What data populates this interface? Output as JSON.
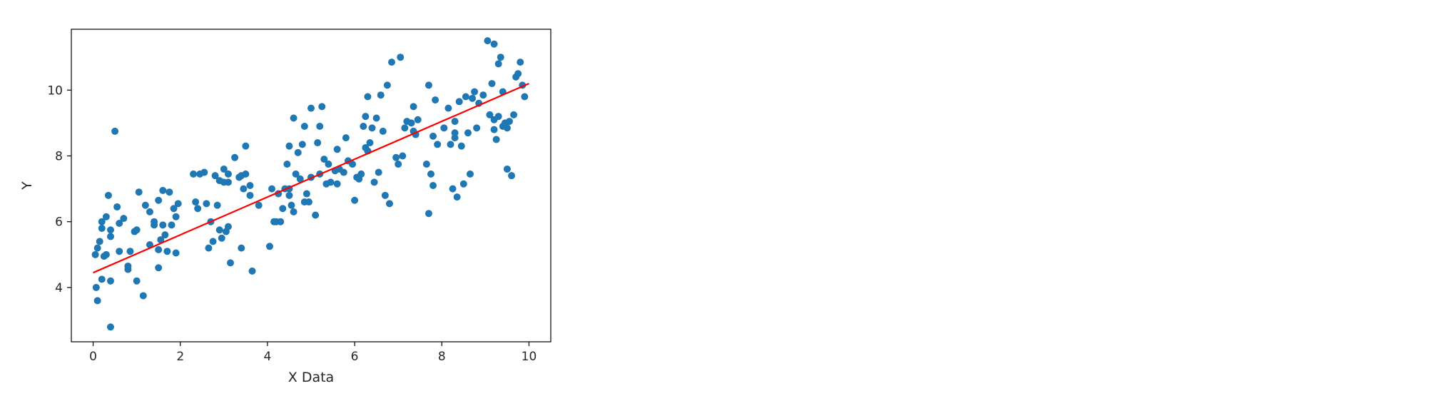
{
  "chart_data": {
    "type": "scatter",
    "title": "",
    "xlabel": "X Data",
    "ylabel": "Y",
    "xlim": [
      -0.5,
      10.5
    ],
    "ylim": [
      2.35,
      11.85
    ],
    "xticks": [
      0,
      2,
      4,
      6,
      8,
      10
    ],
    "yticks": [
      4,
      6,
      8,
      10
    ],
    "grid": false,
    "legend": "none",
    "colors": {
      "points": "#1f77b4",
      "fit_line": "#ff0000",
      "axes": "#000000"
    },
    "series": [
      {
        "kind": "scatter",
        "points": [
          [
            0.05,
            5.0
          ],
          [
            0.07,
            4.0
          ],
          [
            0.1,
            3.6
          ],
          [
            0.1,
            5.2
          ],
          [
            0.15,
            5.4
          ],
          [
            0.2,
            5.8
          ],
          [
            0.2,
            6.0
          ],
          [
            0.2,
            4.25
          ],
          [
            0.3,
            5.0
          ],
          [
            0.3,
            6.15
          ],
          [
            0.35,
            6.8
          ],
          [
            0.4,
            5.55
          ],
          [
            0.4,
            5.75
          ],
          [
            0.4,
            4.2
          ],
          [
            0.4,
            2.8
          ],
          [
            0.5,
            8.75
          ],
          [
            0.55,
            6.45
          ],
          [
            0.6,
            5.1
          ],
          [
            0.6,
            5.95
          ],
          [
            0.7,
            6.1
          ],
          [
            0.8,
            4.55
          ],
          [
            0.8,
            4.65
          ],
          [
            0.85,
            5.1
          ],
          [
            0.95,
            5.7
          ],
          [
            1.0,
            5.75
          ],
          [
            1.0,
            4.2
          ],
          [
            1.05,
            6.9
          ],
          [
            1.15,
            3.75
          ],
          [
            1.2,
            6.5
          ],
          [
            1.3,
            6.3
          ],
          [
            1.3,
            5.3
          ],
          [
            1.4,
            6.0
          ],
          [
            1.4,
            5.9
          ],
          [
            1.5,
            6.65
          ],
          [
            1.5,
            5.15
          ],
          [
            1.5,
            4.6
          ],
          [
            1.6,
            6.95
          ],
          [
            1.6,
            5.9
          ],
          [
            1.65,
            5.6
          ],
          [
            1.7,
            5.1
          ],
          [
            1.75,
            6.9
          ],
          [
            1.8,
            5.9
          ],
          [
            1.85,
            6.4
          ],
          [
            1.9,
            6.15
          ],
          [
            1.9,
            5.05
          ],
          [
            1.95,
            6.55
          ],
          [
            2.3,
            7.45
          ],
          [
            2.35,
            6.6
          ],
          [
            2.4,
            6.4
          ],
          [
            2.45,
            7.45
          ],
          [
            2.55,
            7.5
          ],
          [
            2.6,
            6.55
          ],
          [
            2.65,
            5.2
          ],
          [
            2.7,
            6.0
          ],
          [
            2.75,
            5.4
          ],
          [
            2.8,
            7.4
          ],
          [
            2.85,
            6.5
          ],
          [
            2.9,
            5.75
          ],
          [
            2.95,
            5.5
          ],
          [
            3.0,
            7.6
          ],
          [
            3.0,
            7.2
          ],
          [
            3.05,
            5.7
          ],
          [
            3.1,
            7.45
          ],
          [
            3.1,
            7.2
          ],
          [
            3.1,
            5.85
          ],
          [
            3.15,
            4.75
          ],
          [
            3.25,
            7.95
          ],
          [
            3.35,
            7.35
          ],
          [
            3.4,
            7.4
          ],
          [
            3.4,
            5.2
          ],
          [
            3.45,
            7.0
          ],
          [
            3.5,
            8.3
          ],
          [
            3.5,
            7.45
          ],
          [
            3.6,
            7.1
          ],
          [
            3.6,
            6.8
          ],
          [
            3.65,
            4.5
          ],
          [
            4.05,
            5.25
          ],
          [
            4.1,
            7.0
          ],
          [
            4.15,
            6.0
          ],
          [
            4.2,
            6.0
          ],
          [
            4.25,
            6.85
          ],
          [
            4.3,
            6.0
          ],
          [
            4.35,
            6.4
          ],
          [
            4.4,
            7.0
          ],
          [
            4.45,
            7.75
          ],
          [
            4.5,
            8.3
          ],
          [
            4.5,
            7.0
          ],
          [
            4.5,
            6.8
          ],
          [
            4.55,
            6.5
          ],
          [
            4.6,
            9.15
          ],
          [
            4.65,
            7.45
          ],
          [
            4.7,
            8.1
          ],
          [
            4.75,
            7.3
          ],
          [
            4.8,
            8.35
          ],
          [
            4.85,
            8.9
          ],
          [
            4.85,
            6.6
          ],
          [
            4.9,
            6.85
          ],
          [
            4.95,
            6.6
          ],
          [
            5.0,
            9.45
          ],
          [
            5.0,
            7.35
          ],
          [
            5.1,
            6.2
          ],
          [
            5.15,
            8.4
          ],
          [
            5.2,
            8.9
          ],
          [
            5.2,
            7.45
          ],
          [
            5.25,
            9.5
          ],
          [
            5.3,
            7.9
          ],
          [
            5.35,
            7.15
          ],
          [
            5.4,
            7.75
          ],
          [
            5.45,
            7.2
          ],
          [
            5.55,
            7.55
          ],
          [
            5.6,
            8.2
          ],
          [
            5.65,
            7.6
          ],
          [
            5.75,
            7.5
          ],
          [
            5.8,
            8.55
          ],
          [
            5.85,
            7.85
          ],
          [
            5.95,
            7.75
          ],
          [
            6.0,
            6.65
          ],
          [
            6.05,
            7.35
          ],
          [
            6.1,
            7.3
          ],
          [
            6.15,
            7.45
          ],
          [
            6.2,
            8.9
          ],
          [
            6.25,
            9.2
          ],
          [
            6.25,
            8.25
          ],
          [
            6.3,
            9.8
          ],
          [
            6.35,
            8.4
          ],
          [
            6.4,
            8.85
          ],
          [
            6.45,
            7.2
          ],
          [
            6.5,
            9.15
          ],
          [
            6.55,
            7.5
          ],
          [
            6.6,
            9.85
          ],
          [
            6.65,
            8.75
          ],
          [
            6.7,
            6.8
          ],
          [
            6.75,
            10.15
          ],
          [
            6.8,
            6.55
          ],
          [
            6.85,
            10.85
          ],
          [
            6.95,
            7.95
          ],
          [
            7.0,
            7.75
          ],
          [
            7.05,
            11.0
          ],
          [
            7.1,
            8.0
          ],
          [
            7.15,
            8.85
          ],
          [
            7.2,
            9.05
          ],
          [
            7.3,
            9.0
          ],
          [
            7.35,
            9.5
          ],
          [
            7.4,
            8.65
          ],
          [
            7.45,
            9.1
          ],
          [
            7.65,
            7.75
          ],
          [
            7.7,
            10.15
          ],
          [
            7.7,
            6.25
          ],
          [
            7.75,
            7.45
          ],
          [
            7.8,
            8.6
          ],
          [
            7.8,
            7.1
          ],
          [
            7.85,
            9.7
          ],
          [
            7.9,
            8.35
          ],
          [
            8.05,
            8.85
          ],
          [
            8.15,
            9.45
          ],
          [
            8.2,
            8.35
          ],
          [
            8.25,
            7.0
          ],
          [
            8.3,
            9.05
          ],
          [
            8.3,
            8.7
          ],
          [
            8.35,
            6.75
          ],
          [
            8.4,
            9.65
          ],
          [
            8.45,
            8.3
          ],
          [
            8.5,
            7.15
          ],
          [
            8.55,
            9.8
          ],
          [
            8.6,
            8.7
          ],
          [
            8.65,
            7.45
          ],
          [
            8.7,
            9.75
          ],
          [
            8.75,
            9.95
          ],
          [
            8.8,
            8.85
          ],
          [
            8.85,
            9.6
          ],
          [
            8.95,
            9.85
          ],
          [
            9.05,
            11.5
          ],
          [
            9.1,
            9.25
          ],
          [
            9.15,
            10.2
          ],
          [
            9.2,
            9.1
          ],
          [
            9.2,
            11.4
          ],
          [
            9.25,
            8.5
          ],
          [
            9.3,
            10.8
          ],
          [
            9.35,
            11.0
          ],
          [
            9.4,
            9.95
          ],
          [
            9.45,
            9.0
          ],
          [
            9.5,
            7.6
          ],
          [
            9.55,
            9.05
          ],
          [
            9.6,
            7.4
          ],
          [
            9.65,
            9.25
          ],
          [
            9.7,
            10.4
          ],
          [
            9.75,
            10.5
          ],
          [
            9.8,
            10.85
          ],
          [
            9.85,
            10.15
          ],
          [
            9.9,
            9.8
          ],
          [
            9.2,
            8.8
          ],
          [
            9.5,
            8.85
          ],
          [
            9.3,
            9.2
          ],
          [
            8.3,
            8.55
          ],
          [
            6.3,
            8.15
          ],
          [
            4.6,
            6.3
          ],
          [
            2.9,
            7.25
          ],
          [
            1.55,
            5.45
          ],
          [
            0.25,
            4.95
          ],
          [
            3.8,
            6.5
          ],
          [
            5.6,
            7.15
          ],
          [
            7.35,
            8.75
          ],
          [
            9.4,
            8.9
          ]
        ]
      },
      {
        "kind": "line",
        "x": [
          0,
          10
        ],
        "y": [
          4.45,
          10.2
        ]
      }
    ]
  }
}
